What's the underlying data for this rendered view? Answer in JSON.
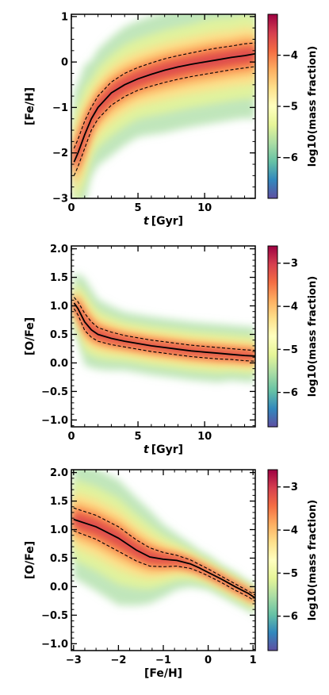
{
  "chart_data": [
    {
      "type": "heatmap",
      "xlabel_var": "t",
      "xlabel_unit": "[Gyr]",
      "ylabel": "[Fe/H]",
      "xlim": [
        0,
        13.8
      ],
      "ylim": [
        -3,
        1.05
      ],
      "xticks": [
        0,
        5,
        10
      ],
      "yticks": [
        1,
        0,
        -1,
        -2,
        -3
      ],
      "xtick_labels": [
        "0",
        "5",
        "10"
      ],
      "ytick_labels": [
        "1",
        "0",
        "−1",
        "−2",
        "−3"
      ],
      "colorbar": {
        "label": "log10(mass fraction)",
        "ticks": [
          -4,
          -5,
          -6
        ],
        "tick_labels": [
          "−4",
          "−5",
          "−6"
        ],
        "range": [
          -6.8,
          -3.2
        ],
        "colormap": "Spectral_r"
      },
      "series": [
        {
          "style": "solid",
          "x": [
            0.2,
            0.5,
            1,
            1.5,
            2,
            3,
            4,
            5,
            6,
            7,
            8,
            9,
            10,
            11,
            12,
            13,
            13.8
          ],
          "y": [
            -2.2,
            -2.0,
            -1.6,
            -1.25,
            -1.0,
            -0.68,
            -0.5,
            -0.37,
            -0.27,
            -0.18,
            -0.11,
            -0.05,
            0.0,
            0.05,
            0.1,
            0.14,
            0.18
          ]
        },
        {
          "style": "dashed",
          "x": [
            0.2,
            0.5,
            1,
            1.5,
            2,
            3,
            4,
            5,
            6,
            7,
            8,
            9,
            10,
            11,
            12,
            13,
            13.8
          ],
          "y": [
            -1.9,
            -1.7,
            -1.3,
            -1.0,
            -0.75,
            -0.44,
            -0.25,
            -0.12,
            -0.02,
            0.07,
            0.14,
            0.2,
            0.26,
            0.31,
            0.35,
            0.4,
            0.42
          ]
        },
        {
          "style": "dashed",
          "x": [
            0.2,
            0.5,
            1,
            1.5,
            2,
            3,
            4,
            5,
            6,
            7,
            8,
            9,
            10,
            11,
            12,
            13,
            13.8
          ],
          "y": [
            -2.5,
            -2.3,
            -1.9,
            -1.5,
            -1.25,
            -0.95,
            -0.76,
            -0.62,
            -0.53,
            -0.45,
            -0.38,
            -0.32,
            -0.27,
            -0.22,
            -0.17,
            -0.13,
            -0.1
          ]
        }
      ]
    },
    {
      "type": "heatmap",
      "xlabel_var": "t",
      "xlabel_unit": "[Gyr]",
      "ylabel": "[O/Fe]",
      "xlim": [
        0,
        13.8
      ],
      "ylim": [
        -1.12,
        2.05
      ],
      "xticks": [
        0,
        5,
        10
      ],
      "yticks": [
        2.0,
        1.5,
        1.0,
        0.5,
        0.0,
        -0.5,
        -1.0
      ],
      "xtick_labels": [
        "0",
        "5",
        "10"
      ],
      "ytick_labels": [
        "2.0",
        "1.5",
        "1.0",
        "0.5",
        "0.0",
        "−0.5",
        "−1.0"
      ],
      "colorbar": {
        "label": "log10(mass fraction)",
        "ticks": [
          -3,
          -4,
          -5,
          -6
        ],
        "tick_labels": [
          "−3",
          "−4",
          "−5",
          "−6"
        ],
        "range": [
          -6.8,
          -2.6
        ],
        "colormap": "Spectral_r"
      },
      "series": [
        {
          "style": "solid",
          "x": [
            0.2,
            0.5,
            1,
            1.5,
            2,
            3,
            4,
            5,
            6,
            7,
            8,
            9,
            10,
            11,
            12,
            13,
            13.8
          ],
          "y": [
            1.05,
            0.95,
            0.72,
            0.58,
            0.5,
            0.43,
            0.38,
            0.34,
            0.3,
            0.27,
            0.24,
            0.21,
            0.19,
            0.17,
            0.15,
            0.13,
            0.12
          ]
        },
        {
          "style": "dashed",
          "x": [
            0.2,
            0.5,
            1,
            1.5,
            2,
            3,
            4,
            5,
            6,
            7,
            8,
            9,
            10,
            11,
            12,
            13,
            13.8
          ],
          "y": [
            1.15,
            1.07,
            0.87,
            0.72,
            0.62,
            0.54,
            0.48,
            0.44,
            0.4,
            0.37,
            0.34,
            0.31,
            0.29,
            0.27,
            0.25,
            0.23,
            0.22
          ]
        },
        {
          "style": "dashed",
          "x": [
            0.2,
            0.5,
            1,
            1.5,
            2,
            3,
            4,
            5,
            6,
            7,
            8,
            9,
            10,
            11,
            12,
            13,
            13.8
          ],
          "y": [
            0.95,
            0.84,
            0.57,
            0.45,
            0.38,
            0.32,
            0.28,
            0.24,
            0.2,
            0.17,
            0.14,
            0.11,
            0.09,
            0.07,
            0.06,
            0.04,
            0.03
          ]
        }
      ]
    },
    {
      "type": "heatmap",
      "xlabel": "[Fe/H]",
      "ylabel": "[O/Fe]",
      "xlim": [
        -3.05,
        1.05
      ],
      "ylim": [
        -1.12,
        2.05
      ],
      "xticks": [
        -3,
        -2,
        -1,
        0,
        1
      ],
      "yticks": [
        2.0,
        1.5,
        1.0,
        0.5,
        0.0,
        -0.5,
        -1.0
      ],
      "xtick_labels": [
        "−3",
        "−2",
        "−1",
        "0",
        "1"
      ],
      "ytick_labels": [
        "2.0",
        "1.5",
        "1.0",
        "0.5",
        "0.0",
        "−0.5",
        "−1.0"
      ],
      "colorbar": {
        "label": "log10(mass fraction)",
        "ticks": [
          -3,
          -4,
          -5,
          -6
        ],
        "tick_labels": [
          "−3",
          "−4",
          "−5",
          "−6"
        ],
        "range": [
          -6.8,
          -2.6
        ],
        "colormap": "Spectral_r"
      },
      "series": [
        {
          "style": "solid",
          "x": [
            -3.0,
            -2.5,
            -2.0,
            -1.6,
            -1.3,
            -1.0,
            -0.7,
            -0.4,
            -0.2,
            0.0,
            0.3,
            0.6,
            0.9,
            1.05
          ],
          "y": [
            1.18,
            1.05,
            0.85,
            0.64,
            0.52,
            0.48,
            0.46,
            0.4,
            0.33,
            0.25,
            0.13,
            0.0,
            -0.12,
            -0.2
          ]
        },
        {
          "style": "dashed",
          "x": [
            -3.0,
            -2.5,
            -2.0,
            -1.6,
            -1.3,
            -1.0,
            -0.7,
            -0.4,
            -0.2,
            0.0,
            0.3,
            0.6,
            0.9,
            1.05
          ],
          "y": [
            1.38,
            1.25,
            1.05,
            0.82,
            0.68,
            0.6,
            0.55,
            0.47,
            0.39,
            0.31,
            0.18,
            0.05,
            -0.08,
            -0.15
          ]
        },
        {
          "style": "dashed",
          "x": [
            -3.0,
            -2.5,
            -2.0,
            -1.6,
            -1.3,
            -1.0,
            -0.7,
            -0.4,
            -0.2,
            0.0,
            0.3,
            0.6,
            0.9,
            1.05
          ],
          "y": [
            0.98,
            0.83,
            0.62,
            0.45,
            0.36,
            0.35,
            0.36,
            0.32,
            0.26,
            0.19,
            0.07,
            -0.06,
            -0.18,
            -0.26
          ]
        }
      ]
    }
  ]
}
